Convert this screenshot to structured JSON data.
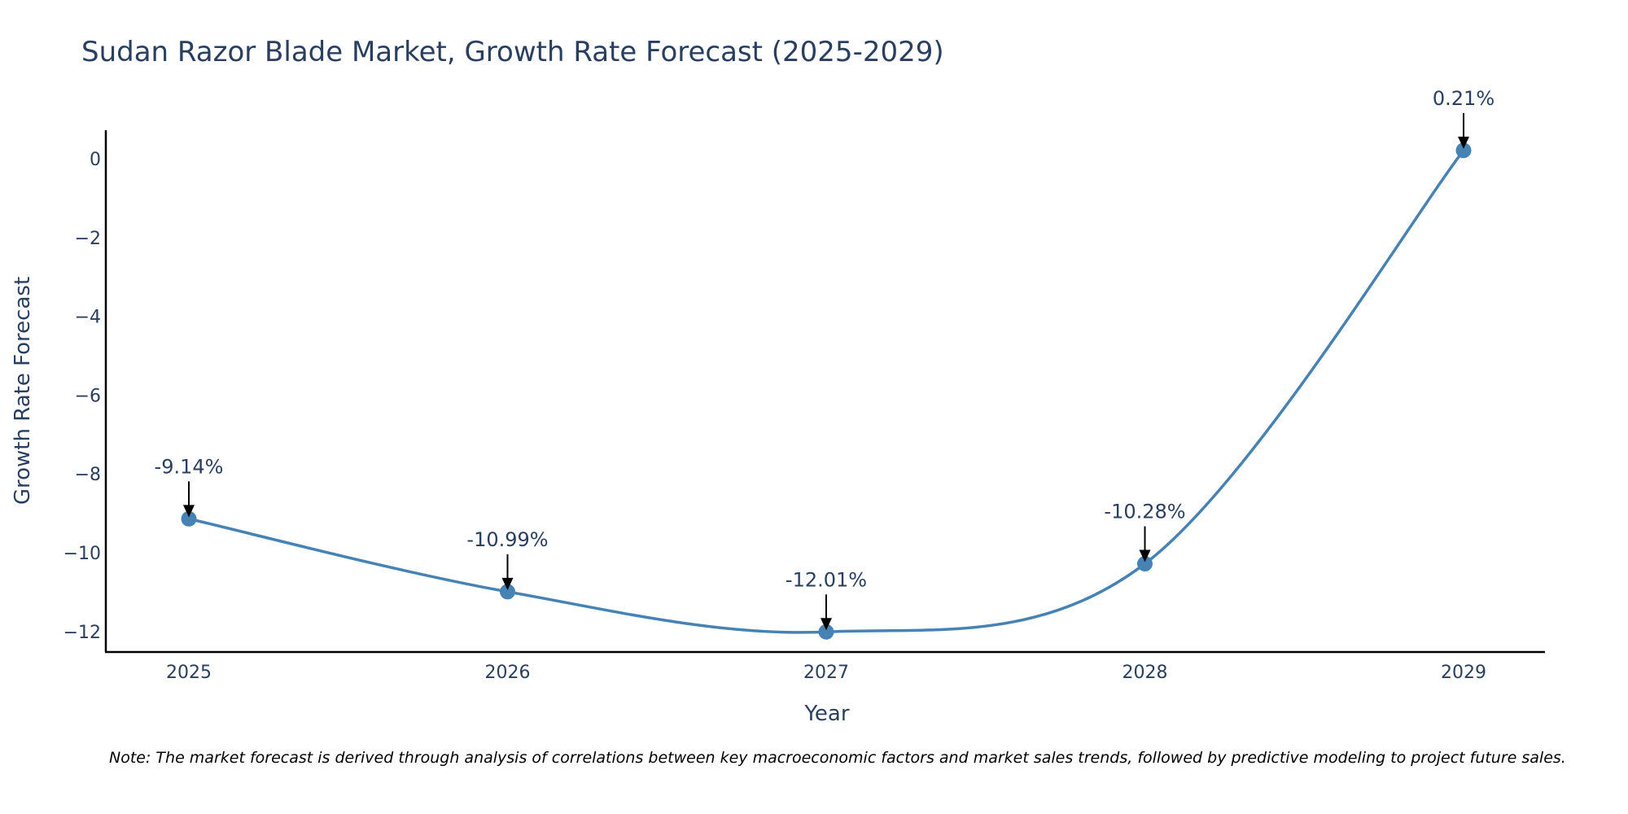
{
  "chart_data": {
    "type": "line",
    "title": "Sudan Razor Blade Market, Growth Rate Forecast (2025-2029)",
    "xlabel": "Year",
    "ylabel": "Growth Rate Forecast",
    "categories": [
      "2025",
      "2026",
      "2027",
      "2028",
      "2029"
    ],
    "values": [
      -9.14,
      -10.99,
      -12.01,
      -10.28,
      0.21
    ],
    "data_labels": [
      "-9.14%",
      "-10.99%",
      "-12.01%",
      "-10.28%",
      "0.21%"
    ],
    "yticks": [
      0,
      -2,
      -4,
      -6,
      -8,
      -10,
      -12
    ],
    "ytick_labels": [
      "0",
      "−2",
      "−4",
      "−6",
      "−8",
      "−10",
      "−12"
    ],
    "ylim": [
      -12.55,
      0.7
    ],
    "line_color": "#4682b4",
    "marker_color": "#4682b4",
    "annotation_color": "#000000",
    "grid": false,
    "legend": "none"
  },
  "note": "Note: The market forecast is derived through analysis of correlations between key macroeconomic factors and market sales trends, followed by predictive modeling to project future sales."
}
